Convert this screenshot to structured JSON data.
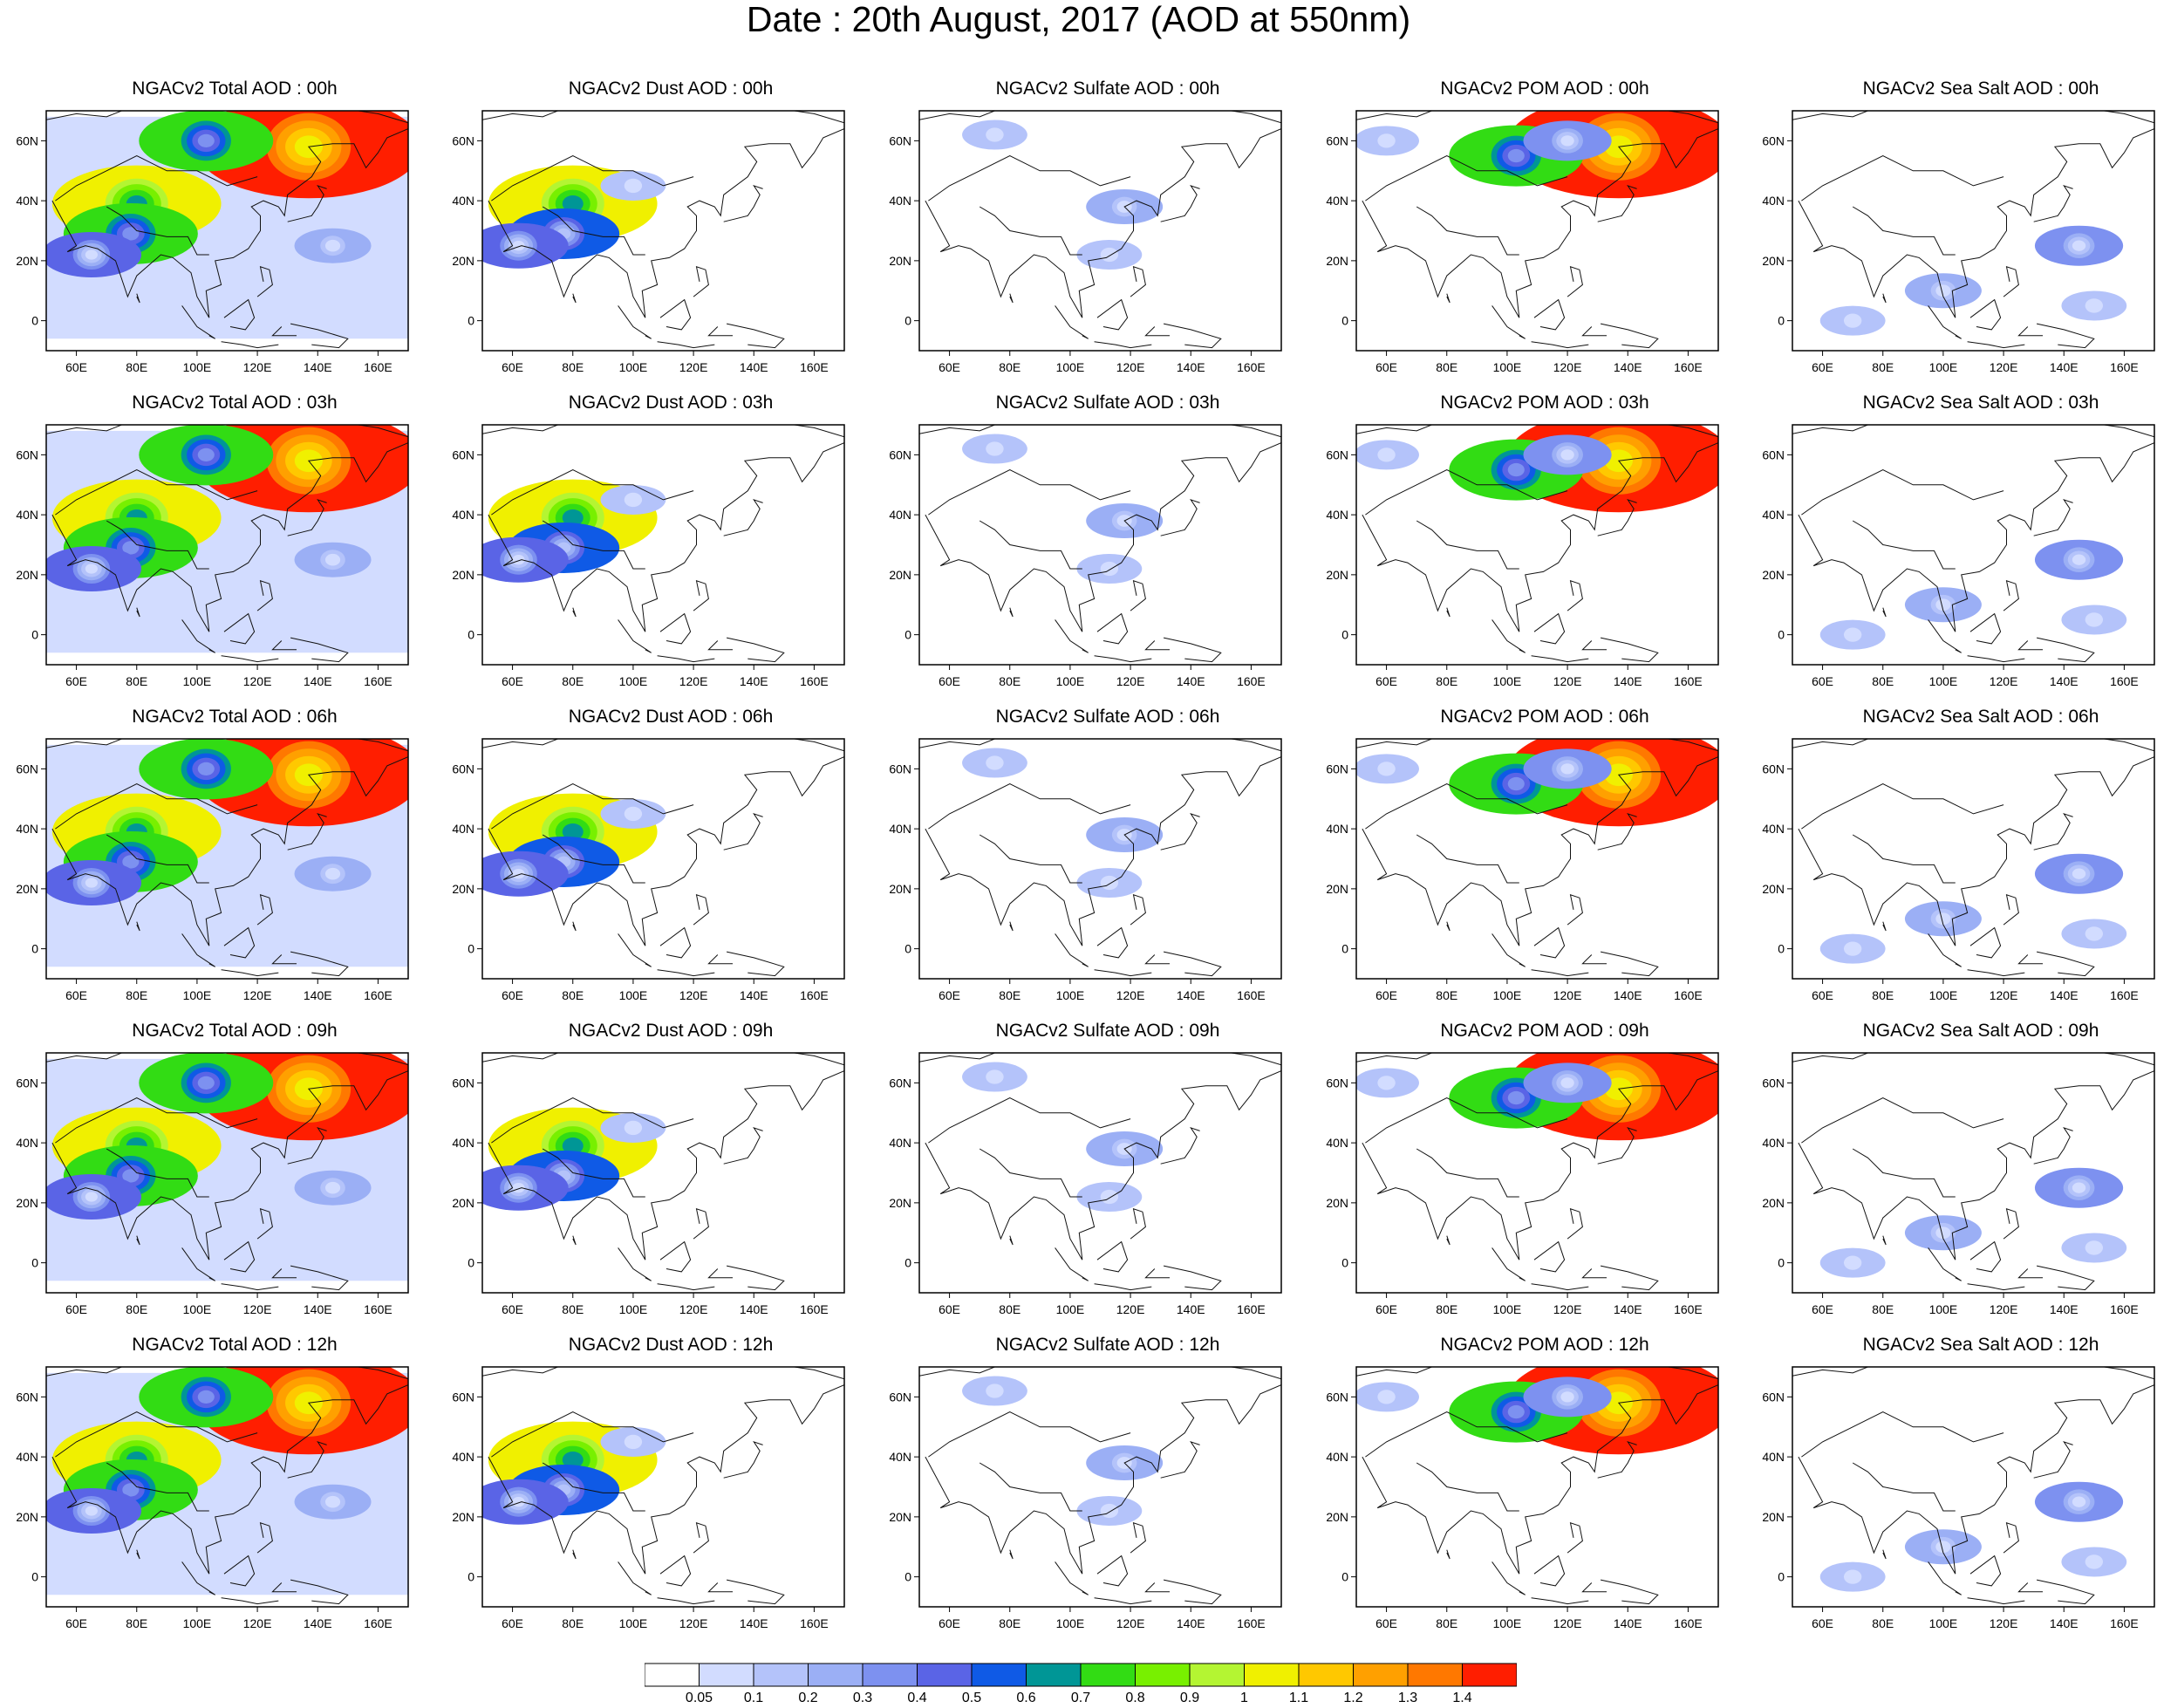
{
  "title": "Date : 20th August, 2017 (AOD at 550nm)",
  "lat_ticks": [
    "60N",
    "40N",
    "20N",
    "0"
  ],
  "lon_ticks": [
    "60E",
    "80E",
    "100E",
    "120E",
    "140E",
    "160E"
  ],
  "panels": [
    [
      {
        "title": "NGACv2 Total AOD : 00h"
      },
      {
        "title": "NGACv2 Dust AOD : 00h"
      },
      {
        "title": "NGACv2 Sulfate AOD : 00h"
      },
      {
        "title": "NGACv2 POM AOD : 00h"
      },
      {
        "title": "NGACv2 Sea Salt AOD : 00h"
      }
    ],
    [
      {
        "title": "NGACv2 Total AOD : 03h"
      },
      {
        "title": "NGACv2 Dust AOD : 03h"
      },
      {
        "title": "NGACv2 Sulfate AOD : 03h"
      },
      {
        "title": "NGACv2 POM AOD : 03h"
      },
      {
        "title": "NGACv2 Sea Salt AOD : 03h"
      }
    ],
    [
      {
        "title": "NGACv2 Total AOD : 06h"
      },
      {
        "title": "NGACv2 Dust AOD : 06h"
      },
      {
        "title": "NGACv2 Sulfate AOD : 06h"
      },
      {
        "title": "NGACv2 POM AOD : 06h"
      },
      {
        "title": "NGACv2 Sea Salt AOD : 06h"
      }
    ],
    [
      {
        "title": "NGACv2 Total AOD : 09h"
      },
      {
        "title": "NGACv2 Dust AOD : 09h"
      },
      {
        "title": "NGACv2 Sulfate AOD : 09h"
      },
      {
        "title": "NGACv2 POM AOD : 09h"
      },
      {
        "title": "NGACv2 Sea Salt  AOD : 09h"
      }
    ],
    [
      {
        "title": "NGACv2 Total AOD  : 12h"
      },
      {
        "title": "NGACv2 Dust AOD : 12h"
      },
      {
        "title": "NGACv2 Sulfate AOD : 12h"
      },
      {
        "title": "NGACv2 POM  AOD : 12h"
      },
      {
        "title": "NGACv2 Sea Salt  AOD : 12h"
      }
    ]
  ],
  "colorbar": {
    "labels": [
      "0.05",
      "0.1",
      "0.2",
      "0.3",
      "0.4",
      "0.5",
      "0.6",
      "0.7",
      "0.8",
      "0.9",
      "1",
      "1.1",
      "1.2",
      "1.3",
      "1.4"
    ],
    "colors": [
      "#ffffff",
      "#d2dcff",
      "#b4c3fa",
      "#9baff5",
      "#7d91f0",
      "#5a64e6",
      "#0f5ae6",
      "#009696",
      "#32dc14",
      "#78f000",
      "#b4f532",
      "#f0f000",
      "#ffc800",
      "#ffa000",
      "#ff7800",
      "#ff1e00"
    ]
  },
  "chart_data": {
    "type": "heatmap",
    "title": "Date : 20th August, 2017 (AOD at 550nm)",
    "variable": "AOD at 550nm",
    "date": "20th August, 2017",
    "species": [
      "Total",
      "Dust",
      "Sulfate",
      "POM",
      "Sea Salt"
    ],
    "hours": [
      "00h",
      "03h",
      "06h",
      "09h",
      "12h"
    ],
    "lon_range": [
      50,
      170
    ],
    "lat_range": [
      -10,
      70
    ],
    "levels": [
      0.05,
      0.1,
      0.2,
      0.3,
      0.4,
      0.5,
      0.6,
      0.7,
      0.8,
      0.9,
      1,
      1.1,
      1.2,
      1.3,
      1.4
    ],
    "features": {
      "Total": [
        {
          "lon": 137,
          "lat": 58,
          "value": 1.5
        },
        {
          "lon": 80,
          "lat": 39,
          "value": 1.0
        },
        {
          "lon": 78,
          "lat": 29,
          "value": 0.7
        },
        {
          "lon": 103,
          "lat": 60,
          "value": 0.7
        },
        {
          "lon": 65,
          "lat": 22,
          "value": 0.4
        },
        {
          "lon": 145,
          "lat": 25,
          "value": 0.2
        }
      ],
      "Dust": [
        {
          "lon": 80,
          "lat": 39,
          "value": 1.0
        },
        {
          "lon": 77,
          "lat": 29,
          "value": 0.5
        },
        {
          "lon": 62,
          "lat": 25,
          "value": 0.4
        },
        {
          "lon": 100,
          "lat": 45,
          "value": 0.1
        }
      ],
      "Sulfate": [
        {
          "lon": 118,
          "lat": 38,
          "value": 0.2
        },
        {
          "lon": 75,
          "lat": 62,
          "value": 0.1
        },
        {
          "lon": 113,
          "lat": 22,
          "value": 0.1
        }
      ],
      "POM": [
        {
          "lon": 137,
          "lat": 58,
          "value": 1.5
        },
        {
          "lon": 103,
          "lat": 55,
          "value": 0.7
        },
        {
          "lon": 120,
          "lat": 60,
          "value": 0.3
        },
        {
          "lon": 60,
          "lat": 60,
          "value": 0.1
        }
      ],
      "Sea Salt": [
        {
          "lon": 145,
          "lat": 25,
          "value": 0.3
        },
        {
          "lon": 100,
          "lat": 10,
          "value": 0.2
        },
        {
          "lon": 70,
          "lat": 0,
          "value": 0.1
        },
        {
          "lon": 150,
          "lat": 5,
          "value": 0.1
        }
      ]
    }
  }
}
